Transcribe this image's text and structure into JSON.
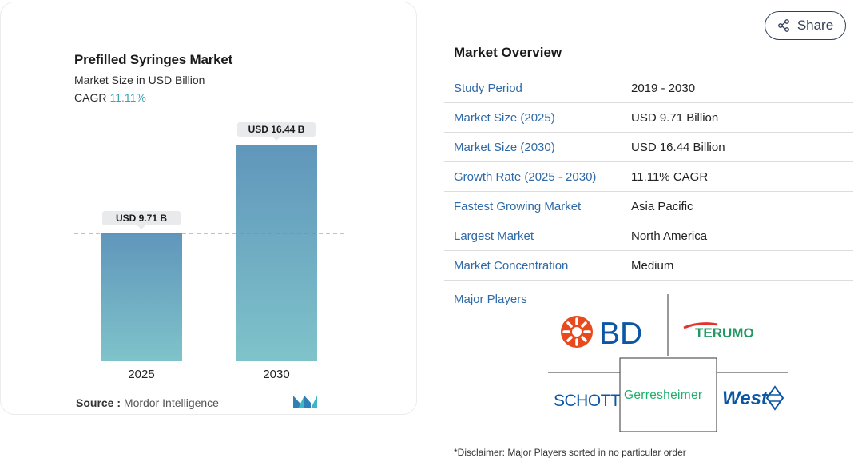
{
  "chart_data": {
    "type": "bar",
    "title": "Prefilled Syringes Market",
    "subtitle": "Market Size in USD Billion",
    "cagr_label": "CAGR",
    "cagr_value": "11.11%",
    "categories": [
      "2025",
      "2030"
    ],
    "values": [
      9.71,
      16.44
    ],
    "data_labels": [
      "USD 9.71 B",
      "USD 16.44 B"
    ],
    "colors": {
      "bar_top": "#6096bb",
      "bar_bottom": "#7fc3ca",
      "label_bg": "#e8eaec",
      "reference_line": "#5e8fb8"
    },
    "reference_line_at": 9.71,
    "grid": false
  },
  "source": {
    "label": "Source :",
    "value": "Mordor Intelligence",
    "logo_icon": "mordor-intelligence-logo"
  },
  "share": {
    "label": "Share",
    "icon": "share-icon"
  },
  "overview": {
    "title": "Market Overview",
    "rows": [
      {
        "key": "Study Period",
        "value": "2019 - 2030"
      },
      {
        "key": "Market Size (2025)",
        "value": "USD 9.71 Billion"
      },
      {
        "key": "Market Size (2030)",
        "value": "USD 16.44 Billion"
      },
      {
        "key": "Growth Rate (2025 - 2030)",
        "value": "11.11% CAGR"
      },
      {
        "key": "Fastest Growing Market",
        "value": "Asia Pacific"
      },
      {
        "key": "Largest Market",
        "value": "North America"
      },
      {
        "key": "Market Concentration",
        "value": "Medium"
      }
    ],
    "players_label": "Major Players",
    "players": [
      "BD",
      "TERUMO",
      "SCHOTT",
      "Gerresheimer",
      "West"
    ]
  },
  "disclaimer": "*Disclaimer: Major Players sorted in no particular order",
  "colors": {
    "accent_blue": "#2e6aa8",
    "brand_teal": "#3fa3b5",
    "share_border": "#2f3e59"
  }
}
